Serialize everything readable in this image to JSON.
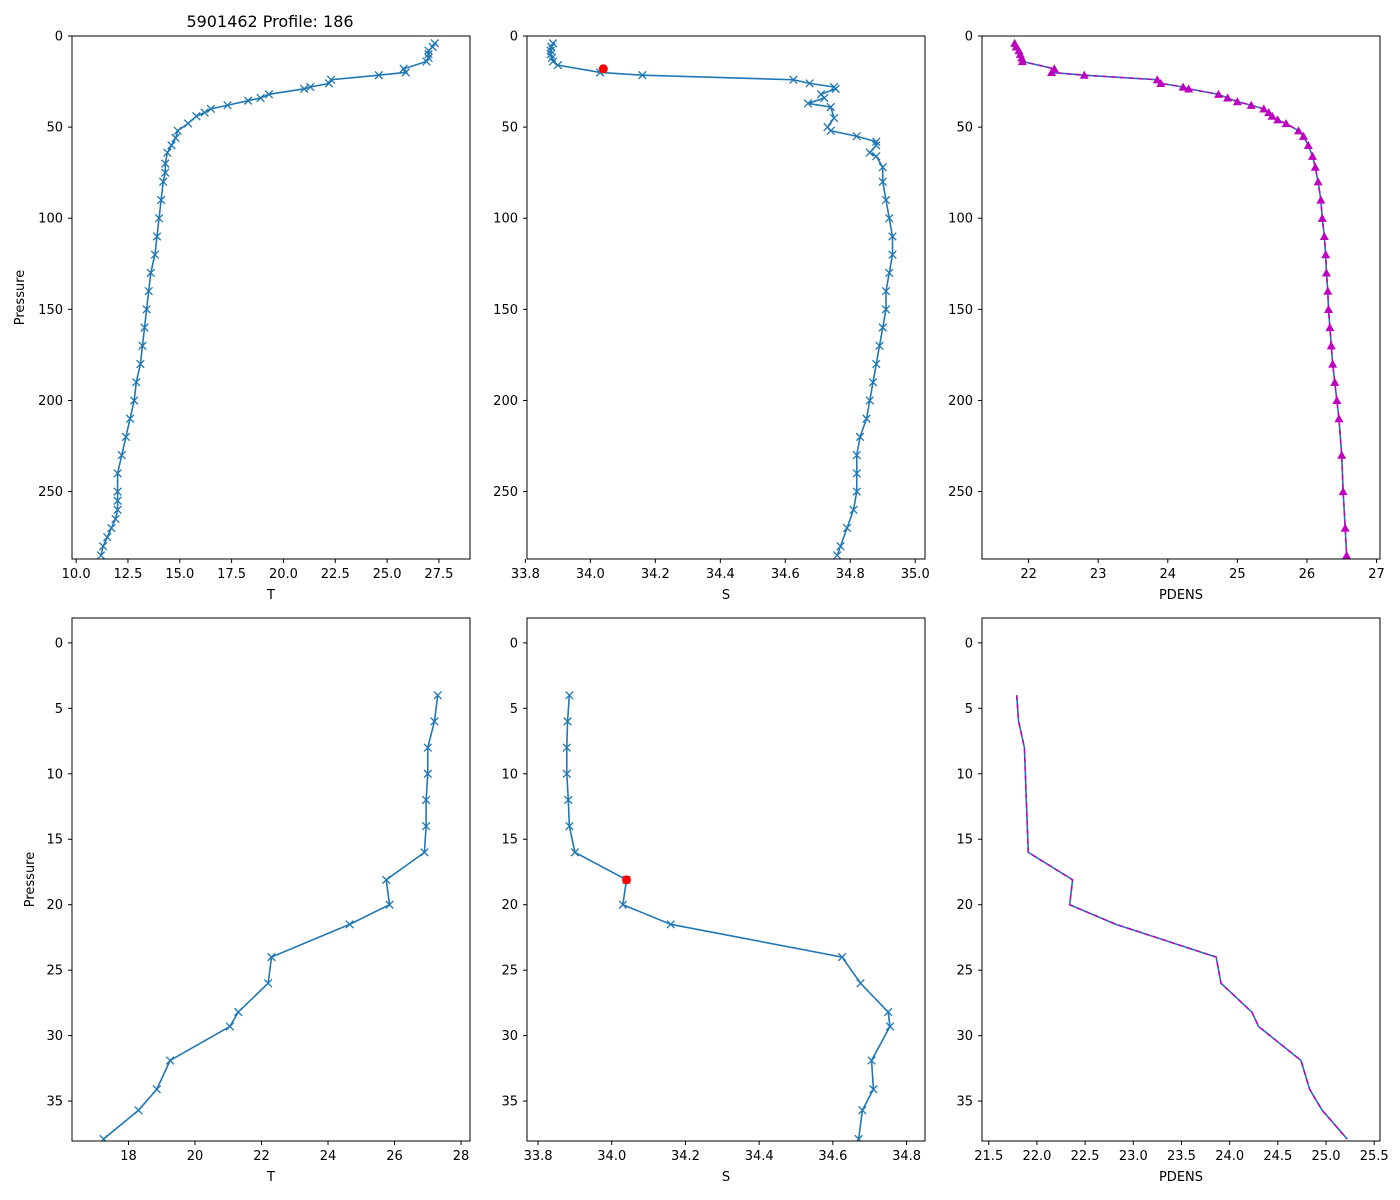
{
  "figure_title": "5901462 Profile: 186",
  "colors": {
    "line": "#1f77b4",
    "highlight": "#ff0000",
    "pdens_line": "#1f77b4",
    "pdens_dash": "#bf00bf",
    "axes": "#000000",
    "background": "#ffffff"
  },
  "chart_data": [
    {
      "id": "top-temperature",
      "type": "line",
      "title": "5901462 Profile: 186",
      "xlabel": "T",
      "ylabel": "Pressure",
      "xlim": [
        9.8,
        29.0
      ],
      "ylim": [
        287,
        0
      ],
      "xticks": [
        10.0,
        12.5,
        15.0,
        17.5,
        20.0,
        22.5,
        25.0,
        27.5
      ],
      "xtick_labels": [
        "10.0",
        "12.5",
        "15.0",
        "17.5",
        "20.0",
        "22.5",
        "25.0",
        "27.5"
      ],
      "yticks": [
        0,
        50,
        100,
        150,
        200,
        250
      ],
      "ytick_labels": [
        "0",
        "50",
        "100",
        "150",
        "200",
        "250"
      ],
      "marker": "x",
      "series": [
        {
          "name": "T",
          "x": [
            27.3,
            27.2,
            27.0,
            27.0,
            27.0,
            26.9,
            25.8,
            25.9,
            24.6,
            22.3,
            22.2,
            21.3,
            21.0,
            19.3,
            18.9,
            18.3,
            17.3,
            16.5,
            16.2,
            15.8,
            15.4,
            14.9,
            14.8,
            14.6,
            14.4,
            14.3,
            14.3,
            14.2,
            14.1,
            14.0,
            13.9,
            13.8,
            13.6,
            13.5,
            13.4,
            13.3,
            13.2,
            13.1,
            12.9,
            12.8,
            12.6,
            12.4,
            12.2,
            12.0,
            12.0,
            12.0,
            12.0,
            11.9,
            11.7,
            11.5,
            11.3,
            11.2
          ],
          "y": [
            4,
            6,
            8,
            10,
            12,
            14,
            18,
            20,
            21.5,
            24,
            26,
            28,
            29,
            32,
            34,
            35.5,
            38,
            40,
            42,
            44,
            48,
            52,
            56,
            60,
            64,
            70,
            75,
            80,
            90,
            100,
            110,
            120,
            130,
            140,
            150,
            160,
            170,
            180,
            190,
            200,
            210,
            220,
            230,
            240,
            250,
            255,
            260,
            265,
            270,
            275,
            280,
            285
          ]
        }
      ]
    },
    {
      "id": "top-salinity",
      "type": "line",
      "xlabel": "S",
      "ylabel": "",
      "xlim": [
        33.805,
        35.03
      ],
      "ylim": [
        287,
        0
      ],
      "xticks": [
        33.8,
        34.0,
        34.2,
        34.4,
        34.6,
        34.8,
        35.0
      ],
      "xtick_labels": [
        "33.8",
        "34.0",
        "34.2",
        "34.4",
        "34.6",
        "34.8",
        "35.0"
      ],
      "yticks": [
        0,
        50,
        100,
        150,
        200,
        250
      ],
      "ytick_labels": [
        "0",
        "50",
        "100",
        "150",
        "200",
        "250"
      ],
      "marker": "x",
      "series": [
        {
          "name": "S",
          "x": [
            33.885,
            33.88,
            33.878,
            33.878,
            33.882,
            33.885,
            33.9,
            34.03,
            34.16,
            34.625,
            34.675,
            34.75,
            34.755,
            34.71,
            34.72,
            34.67,
            34.74,
            34.75,
            34.73,
            34.74,
            34.82,
            34.88,
            34.88,
            34.86,
            34.88,
            34.9,
            34.9,
            34.91,
            34.92,
            34.93,
            34.93,
            34.92,
            34.91,
            34.91,
            34.9,
            34.89,
            34.88,
            34.87,
            34.86,
            34.85,
            34.83,
            34.82,
            34.82,
            34.82,
            34.81,
            34.79,
            34.77,
            34.76
          ],
          "y": [
            4,
            6,
            8,
            10,
            12,
            14,
            16,
            20,
            21.5,
            24,
            26,
            28,
            29,
            32,
            34,
            37,
            39,
            45,
            50,
            52,
            55,
            58,
            60,
            64,
            66,
            72,
            80,
            90,
            100,
            110,
            120,
            130,
            140,
            150,
            160,
            170,
            180,
            190,
            200,
            210,
            220,
            230,
            240,
            250,
            260,
            270,
            280,
            285
          ]
        },
        {
          "name": "highlight",
          "x": [
            34.04
          ],
          "y": [
            18
          ]
        }
      ]
    },
    {
      "id": "top-pdens",
      "type": "line",
      "xlabel": "PDENS",
      "ylabel": "",
      "xlim": [
        21.33,
        27.05
      ],
      "ylim": [
        287,
        0
      ],
      "xticks": [
        22,
        23,
        24,
        25,
        26,
        27
      ],
      "xtick_labels": [
        "22",
        "23",
        "24",
        "25",
        "26",
        "27"
      ],
      "yticks": [
        0,
        50,
        100,
        150,
        200,
        250
      ],
      "ytick_labels": [
        "0",
        "50",
        "100",
        "150",
        "200",
        "250"
      ],
      "marker": "triangle",
      "series": [
        {
          "name": "PDENS",
          "x": [
            21.8,
            21.82,
            21.86,
            21.88,
            21.9,
            21.91,
            22.37,
            22.33,
            22.8,
            23.85,
            23.9,
            24.22,
            24.3,
            24.73,
            24.86,
            25.0,
            25.2,
            25.38,
            25.45,
            25.5,
            25.58,
            25.7,
            25.88,
            25.95,
            26.02,
            26.08,
            26.12,
            26.16,
            26.2,
            26.22,
            26.25,
            26.27,
            26.28,
            26.3,
            26.31,
            26.33,
            26.35,
            26.37,
            26.4,
            26.43,
            26.46,
            26.5,
            26.52,
            26.55,
            26.57
          ],
          "y": [
            4,
            6,
            8,
            10,
            12,
            14,
            18,
            20,
            21.5,
            24,
            26,
            28,
            29,
            32,
            34,
            36,
            38,
            40,
            42,
            44,
            46,
            48,
            52,
            55,
            60,
            66,
            72,
            80,
            90,
            100,
            110,
            120,
            130,
            140,
            150,
            160,
            170,
            180,
            190,
            200,
            210,
            230,
            250,
            270,
            285
          ]
        }
      ]
    },
    {
      "id": "bottom-temperature",
      "type": "line",
      "xlabel": "T",
      "ylabel": "Pressure",
      "xlim": [
        16.3,
        28.27
      ],
      "ylim": [
        38.05,
        -1.9
      ],
      "xticks": [
        18,
        20,
        22,
        24,
        26,
        28
      ],
      "xtick_labels": [
        "18",
        "20",
        "22",
        "24",
        "26",
        "28"
      ],
      "yticks": [
        0,
        5,
        10,
        15,
        20,
        25,
        30,
        35
      ],
      "ytick_labels": [
        "0",
        "5",
        "10",
        "15",
        "20",
        "25",
        "30",
        "35"
      ],
      "marker": "x",
      "series": [
        {
          "name": "T",
          "x": [
            27.3,
            27.2,
            27.0,
            27.0,
            26.95,
            26.95,
            26.9,
            25.75,
            25.85,
            24.65,
            22.3,
            22.2,
            21.3,
            21.05,
            19.25,
            18.85,
            18.3,
            17.25
          ],
          "y": [
            4,
            6,
            8,
            10,
            12,
            14,
            16,
            18.1,
            20,
            21.5,
            24,
            26,
            28.2,
            29.3,
            31.9,
            34.1,
            35.7,
            37.9
          ]
        }
      ]
    },
    {
      "id": "bottom-salinity",
      "type": "line",
      "xlabel": "S",
      "ylabel": "",
      "xlim": [
        33.77,
        34.85
      ],
      "ylim": [
        38.05,
        -1.9
      ],
      "xticks": [
        33.8,
        34.0,
        34.2,
        34.4,
        34.6,
        34.8
      ],
      "xtick_labels": [
        "33.8",
        "34.0",
        "34.2",
        "34.4",
        "34.6",
        "34.8"
      ],
      "yticks": [
        0,
        5,
        10,
        15,
        20,
        25,
        30,
        35
      ],
      "ytick_labels": [
        "0",
        "5",
        "10",
        "15",
        "20",
        "25",
        "30",
        "35"
      ],
      "marker": "x",
      "series": [
        {
          "name": "S",
          "x": [
            33.885,
            33.88,
            33.878,
            33.878,
            33.882,
            33.885,
            33.9,
            34.04,
            34.03,
            34.16,
            34.625,
            34.675,
            34.75,
            34.755,
            34.705,
            34.71,
            34.68,
            34.67
          ],
          "y": [
            4,
            6,
            8,
            10,
            12,
            14,
            16,
            18.1,
            20,
            21.5,
            24,
            26,
            28.2,
            29.3,
            31.9,
            34.1,
            35.7,
            37.9
          ]
        },
        {
          "name": "highlight",
          "x": [
            34.04
          ],
          "y": [
            18.1
          ]
        }
      ]
    },
    {
      "id": "bottom-pdens",
      "type": "line",
      "xlabel": "PDENS",
      "ylabel": "",
      "xlim": [
        21.43,
        25.56
      ],
      "ylim": [
        38.05,
        -1.9
      ],
      "xticks": [
        21.5,
        22.0,
        22.5,
        23.0,
        23.5,
        24.0,
        24.5,
        25.0,
        25.5
      ],
      "xtick_labels": [
        "21.5",
        "22.0",
        "22.5",
        "23.0",
        "23.5",
        "24.0",
        "24.5",
        "25.0",
        "25.5"
      ],
      "yticks": [
        0,
        5,
        10,
        15,
        20,
        25,
        30,
        35
      ],
      "ytick_labels": [
        "0",
        "5",
        "10",
        "15",
        "20",
        "25",
        "30",
        "35"
      ],
      "marker": "none",
      "series": [
        {
          "name": "PDENS",
          "x": [
            21.79,
            21.81,
            21.87,
            21.88,
            21.89,
            21.9,
            21.91,
            22.37,
            22.34,
            22.82,
            23.86,
            23.91,
            24.23,
            24.3,
            24.74,
            24.83,
            24.96,
            25.22
          ],
          "y": [
            4,
            6,
            8,
            10,
            12,
            14,
            16,
            18.1,
            20,
            21.5,
            24,
            26,
            28.2,
            29.3,
            31.9,
            34.1,
            35.7,
            37.9
          ]
        }
      ]
    }
  ]
}
